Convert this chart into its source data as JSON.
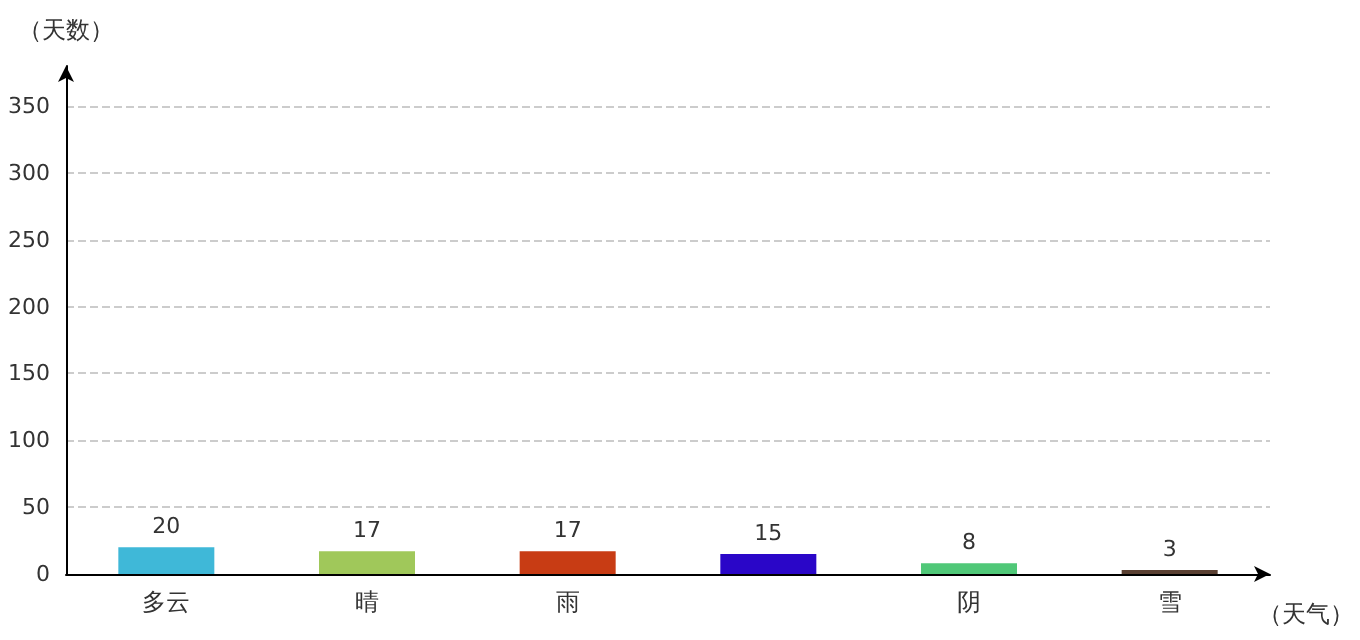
{
  "chart_data": {
    "type": "bar",
    "xlabel": "（天气）",
    "ylabel": "（天数）",
    "categories": [
      "多云",
      "晴",
      "雨",
      null,
      "阴",
      "雪"
    ],
    "values": [
      20,
      17,
      17,
      15,
      8,
      3
    ],
    "colors": [
      "#3fb8d8",
      "#a0c85a",
      "#c83c14",
      "#2a06c8",
      "#50c878",
      "#5a4032"
    ],
    "ylim": [
      0,
      380
    ],
    "yticks": [
      0,
      50,
      100,
      150,
      200,
      250,
      300,
      350
    ],
    "grid": "y",
    "data_labels": true
  }
}
